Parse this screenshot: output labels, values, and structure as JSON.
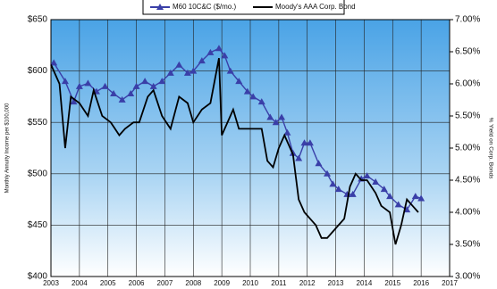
{
  "chart_data": {
    "type": "line",
    "xlabel": null,
    "ylabel": "Monthly Annuity Income per $100,000",
    "y2label": "% Yield on Corp. Bonds",
    "xlim": [
      2003,
      2017
    ],
    "xticks": [
      2003,
      2004,
      2005,
      2006,
      2007,
      2008,
      2009,
      2010,
      2011,
      2012,
      2013,
      2014,
      2015,
      2016,
      2017
    ],
    "ylim": [
      400,
      650
    ],
    "yticks": [
      {
        "value": 400,
        "label": "$400"
      },
      {
        "value": 450,
        "label": "$450"
      },
      {
        "value": 500,
        "label": "$500"
      },
      {
        "value": 550,
        "label": "$550"
      },
      {
        "value": 600,
        "label": "$600"
      },
      {
        "value": 650,
        "label": "$650"
      }
    ],
    "y2lim": [
      3,
      7
    ],
    "y2ticks": [
      {
        "value": 3,
        "label": "3.00%"
      },
      {
        "value": 3.5,
        "label": "3.50%"
      },
      {
        "value": 4,
        "label": "4.00%"
      },
      {
        "value": 4.5,
        "label": "4.50%"
      },
      {
        "value": 5,
        "label": "5.00%"
      },
      {
        "value": 5.5,
        "label": "5.50%"
      },
      {
        "value": 6,
        "label": "6.00%"
      },
      {
        "value": 6.5,
        "label": "6.50%"
      },
      {
        "value": 7,
        "label": "7.00%"
      }
    ],
    "grid": true,
    "series": [
      {
        "name": "M60 10C&C ($/mo.)",
        "color": "#3a3fa8",
        "marker": "triangle",
        "x": [
          2003.1,
          2003.5,
          2003.8,
          2004.0,
          2004.3,
          2004.6,
          2004.9,
          2005.2,
          2005.5,
          2005.8,
          2006.0,
          2006.3,
          2006.6,
          2006.9,
          2007.2,
          2007.5,
          2007.8,
          2008.0,
          2008.3,
          2008.6,
          2008.9,
          2009.1,
          2009.3,
          2009.6,
          2009.9,
          2010.1,
          2010.4,
          2010.7,
          2010.9,
          2011.1,
          2011.3,
          2011.5,
          2011.7,
          2011.9,
          2012.1,
          2012.4,
          2012.7,
          2012.9,
          2013.1,
          2013.4,
          2013.6,
          2013.9,
          2014.1,
          2014.4,
          2014.7,
          2014.9,
          2015.2,
          2015.5,
          2015.8,
          2016.0
        ],
        "values": [
          608,
          590,
          570,
          585,
          588,
          580,
          585,
          578,
          572,
          578,
          585,
          590,
          585,
          590,
          598,
          606,
          598,
          600,
          610,
          618,
          622,
          615,
          600,
          590,
          580,
          575,
          570,
          555,
          550,
          555,
          540,
          520,
          515,
          530,
          530,
          510,
          500,
          490,
          485,
          480,
          480,
          495,
          498,
          492,
          485,
          478,
          470,
          465,
          478,
          476
        ]
      },
      {
        "name": "Moody's AAA Corp. Bond",
        "color": "#000000",
        "axis": "y2",
        "x": [
          2003.0,
          2003.3,
          2003.5,
          2003.7,
          2004.0,
          2004.3,
          2004.5,
          2004.8,
          2005.1,
          2005.4,
          2005.6,
          2005.9,
          2006.1,
          2006.4,
          2006.6,
          2006.9,
          2007.2,
          2007.5,
          2007.8,
          2008.0,
          2008.3,
          2008.6,
          2008.9,
          2009.0,
          2009.2,
          2009.4,
          2009.6,
          2009.9,
          2010.1,
          2010.4,
          2010.6,
          2010.8,
          2011.0,
          2011.2,
          2011.5,
          2011.7,
          2011.9,
          2012.1,
          2012.3,
          2012.5,
          2012.7,
          2012.9,
          2013.1,
          2013.3,
          2013.5,
          2013.7,
          2013.9,
          2014.1,
          2014.4,
          2014.6,
          2014.9,
          2015.1,
          2015.3,
          2015.5,
          2015.7,
          2015.9
        ],
        "values": [
          6.3,
          6.0,
          5.0,
          5.8,
          5.7,
          5.5,
          5.9,
          5.5,
          5.4,
          5.2,
          5.3,
          5.4,
          5.4,
          5.8,
          5.9,
          5.5,
          5.3,
          5.8,
          5.7,
          5.4,
          5.6,
          5.7,
          6.4,
          5.2,
          5.4,
          5.6,
          5.3,
          5.3,
          5.3,
          5.3,
          4.8,
          4.7,
          5.0,
          5.2,
          4.9,
          4.2,
          4.0,
          3.9,
          3.8,
          3.6,
          3.6,
          3.7,
          3.8,
          3.9,
          4.4,
          4.6,
          4.5,
          4.5,
          4.3,
          4.1,
          4.0,
          3.5,
          3.8,
          4.2,
          4.1,
          4.0
        ]
      }
    ]
  }
}
